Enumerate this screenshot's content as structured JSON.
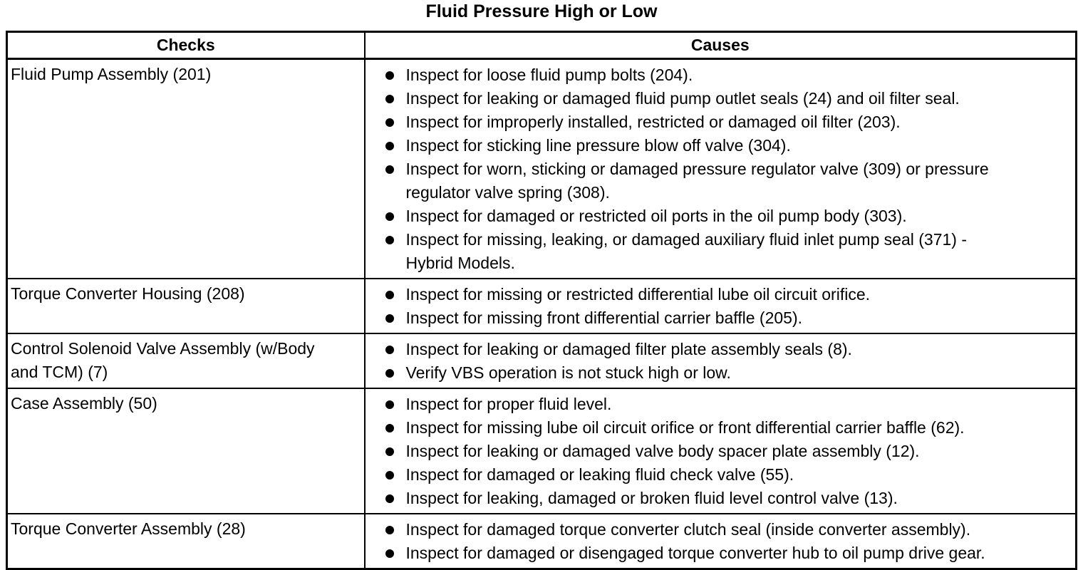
{
  "title": "Fluid Pressure High or Low",
  "table": {
    "headers": {
      "checks": "Checks",
      "causes": "Causes"
    },
    "rows": [
      {
        "check": "Fluid Pump Assembly (201)",
        "causes": [
          "Inspect for loose fluid pump bolts (204).",
          "Inspect for leaking or damaged fluid pump outlet seals (24) and oil filter seal.",
          "Inspect for improperly installed, restricted or damaged oil filter (203).",
          "Inspect for sticking line pressure blow off valve (304).",
          "Inspect for worn, sticking or damaged pressure regulator valve (309) or pressure regulator valve spring (308).",
          "Inspect for damaged or restricted oil ports in the oil pump body (303).",
          "Inspect for missing, leaking, or damaged auxiliary fluid inlet pump seal (371) - Hybrid Models."
        ]
      },
      {
        "check": "Torque Converter Housing (208)",
        "causes": [
          "Inspect for missing or restricted differential lube oil circuit orifice.",
          "Inspect for missing front differential carrier baffle (205)."
        ]
      },
      {
        "check": "Control Solenoid Valve Assembly (w/Body and TCM) (7)",
        "causes": [
          "Inspect for leaking or damaged filter plate assembly seals (8).",
          "Verify VBS operation is not stuck high or low."
        ]
      },
      {
        "check": "Case Assembly (50)",
        "causes": [
          "Inspect for proper fluid level.",
          "Inspect for missing lube oil circuit orifice or front differential carrier baffle (62).",
          "Inspect for leaking or damaged valve body spacer plate assembly (12).",
          "Inspect for damaged or leaking fluid check valve (55).",
          "Inspect for leaking, damaged or broken fluid level control valve (13)."
        ]
      },
      {
        "check": "Torque Converter Assembly (28)",
        "causes": [
          "Inspect for damaged torque converter clutch seal (inside converter assembly).",
          "Inspect for damaged or disengaged torque converter hub to oil pump drive gear."
        ]
      }
    ]
  },
  "icons": {
    "bullet": "filled-circle"
  },
  "colors": {
    "background": "#ffffff",
    "text": "#000000",
    "border": "#000000"
  }
}
